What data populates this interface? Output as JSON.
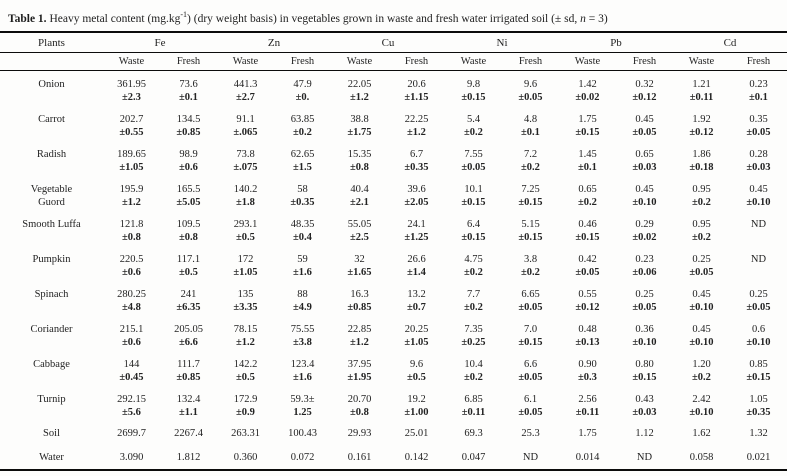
{
  "caption": {
    "label": "Table 1.",
    "pre_sup": " Heavy metal content (mg.kg",
    "sup": "-1",
    "mid": ") (dry weight basis) in vegetables grown in waste and fresh water irrigated soil (± sd, ",
    "italic_n": "n",
    "post": " = 3)"
  },
  "table": {
    "plants_header": "Plants",
    "metal_headers": [
      "Fe",
      "Zn",
      "Cu",
      "Ni",
      "Pb",
      "Cd"
    ],
    "sub_headers": [
      "Waste",
      "Fresh"
    ],
    "rows": [
      {
        "name": "Onion",
        "single": false,
        "cells": [
          [
            "361.95",
            "±2.3"
          ],
          [
            "73.6",
            "±0.1"
          ],
          [
            "441.3",
            "±2.7"
          ],
          [
            "47.9",
            "±0."
          ],
          [
            "22.05",
            "±1.2"
          ],
          [
            "20.6",
            "±1.15"
          ],
          [
            "9.8",
            "±0.15"
          ],
          [
            "9.6",
            "±0.05"
          ],
          [
            "1.42",
            "±0.02"
          ],
          [
            "0.32",
            "±0.12"
          ],
          [
            "1.21",
            "±0.11"
          ],
          [
            "0.23",
            "±0.1"
          ]
        ]
      },
      {
        "name": "Carrot",
        "single": false,
        "cells": [
          [
            "202.7",
            "±0.55"
          ],
          [
            "134.5",
            "±0.85"
          ],
          [
            "91.1",
            "±.065"
          ],
          [
            "63.85",
            "±0.2"
          ],
          [
            "38.8",
            "±1.75"
          ],
          [
            "22.25",
            "±1.2"
          ],
          [
            "5.4",
            "±0.2"
          ],
          [
            "4.8",
            "±0.1"
          ],
          [
            "1.75",
            "±0.15"
          ],
          [
            "0.45",
            "±0.05"
          ],
          [
            "1.92",
            "±0.12"
          ],
          [
            "0.35",
            "±0.05"
          ]
        ]
      },
      {
        "name": "Radish",
        "single": false,
        "cells": [
          [
            "189.65",
            "±1.05"
          ],
          [
            "98.9",
            "±0.6"
          ],
          [
            "73.8",
            "±.075"
          ],
          [
            "62.65",
            "±1.5"
          ],
          [
            "15.35",
            "±0.8"
          ],
          [
            "6.7",
            "±0.35"
          ],
          [
            "7.55",
            "±0.05"
          ],
          [
            "7.2",
            "±0.2"
          ],
          [
            "1.45",
            "±0.1"
          ],
          [
            "0.65",
            "±0.03"
          ],
          [
            "1.86",
            "±0.18"
          ],
          [
            "0.28",
            "±0.03"
          ]
        ]
      },
      {
        "name": "Vegetable",
        "name2": "Guord",
        "single": false,
        "cells": [
          [
            "195.9",
            "±1.2"
          ],
          [
            "165.5",
            "±5.05"
          ],
          [
            "140.2",
            "±1.8"
          ],
          [
            "58",
            "±0.35"
          ],
          [
            "40.4",
            "±2.1"
          ],
          [
            "39.6",
            "±2.05"
          ],
          [
            "10.1",
            "±0.15"
          ],
          [
            "7.25",
            "±0.15"
          ],
          [
            "0.65",
            "±0.2"
          ],
          [
            "0.45",
            "±0.10"
          ],
          [
            "0.95",
            "±0.2"
          ],
          [
            "0.45",
            "±0.10"
          ]
        ]
      },
      {
        "name": "Smooth Luffa",
        "single": false,
        "cells": [
          [
            "121.8",
            "±0.8"
          ],
          [
            "109.5",
            "±0.8"
          ],
          [
            "293.1",
            "±0.5"
          ],
          [
            "48.35",
            "±0.4"
          ],
          [
            "55.05",
            "±2.5"
          ],
          [
            "24.1",
            "±1.25"
          ],
          [
            "6.4",
            "±0.15"
          ],
          [
            "5.15",
            "±0.15"
          ],
          [
            "0.46",
            "±0.15"
          ],
          [
            "0.29",
            "±0.02"
          ],
          [
            "0.95",
            "±0.2"
          ],
          [
            "ND",
            ""
          ]
        ]
      },
      {
        "name": "Pumpkin",
        "single": false,
        "cells": [
          [
            "220.5",
            "±0.6"
          ],
          [
            "117.1",
            "±0.5"
          ],
          [
            "172",
            "±1.05"
          ],
          [
            "59",
            "±1.6"
          ],
          [
            "32",
            "±1.65"
          ],
          [
            "26.6",
            "±1.4"
          ],
          [
            "4.75",
            "±0.2"
          ],
          [
            "3.8",
            "±0.2"
          ],
          [
            "0.42",
            "±0.05"
          ],
          [
            "0.23",
            "±0.06"
          ],
          [
            "0.25",
            "±0.05"
          ],
          [
            "ND",
            ""
          ]
        ]
      },
      {
        "name": "Spinach",
        "single": false,
        "cells": [
          [
            "280.25",
            "±4.8"
          ],
          [
            "241",
            "±6.35"
          ],
          [
            "135",
            "±3.35"
          ],
          [
            "88",
            "±4.9"
          ],
          [
            "16.3",
            "±0.85"
          ],
          [
            "13.2",
            "±0.7"
          ],
          [
            "7.7",
            "±0.2"
          ],
          [
            "6.65",
            "±0.05"
          ],
          [
            "0.55",
            "±0.12"
          ],
          [
            "0.25",
            "±0.05"
          ],
          [
            "0.45",
            "±0.10"
          ],
          [
            "0.25",
            "±0.05"
          ]
        ]
      },
      {
        "name": "Coriander",
        "single": false,
        "cells": [
          [
            "215.1",
            "±0.6"
          ],
          [
            "205.05",
            "±6.6"
          ],
          [
            "78.15",
            "±1.2"
          ],
          [
            "75.55",
            "±3.8"
          ],
          [
            "22.85",
            "±1.2"
          ],
          [
            "20.25",
            "±1.05"
          ],
          [
            "7.35",
            "±0.25"
          ],
          [
            "7.0",
            "±0.15"
          ],
          [
            "0.48",
            "±0.13"
          ],
          [
            "0.36",
            "±0.10"
          ],
          [
            "0.45",
            "±0.10"
          ],
          [
            "0.6",
            "±0.10"
          ]
        ]
      },
      {
        "name": "Cabbage",
        "single": false,
        "cells": [
          [
            "144",
            "±0.45"
          ],
          [
            "111.7",
            "±0.85"
          ],
          [
            "142.2",
            "±0.5"
          ],
          [
            "123.4",
            "±1.6"
          ],
          [
            "37.95",
            "±1.95"
          ],
          [
            "9.6",
            "±0.5"
          ],
          [
            "10.4",
            "±0.2"
          ],
          [
            "6.6",
            "±0.05"
          ],
          [
            "0.90",
            "±0.3"
          ],
          [
            "0.80",
            "±0.15"
          ],
          [
            "1.20",
            "±0.2"
          ],
          [
            "0.85",
            "±0.15"
          ]
        ]
      },
      {
        "name": "Turnip",
        "single": false,
        "cells": [
          [
            "292.15",
            "±5.6"
          ],
          [
            "132.4",
            "±1.1"
          ],
          [
            "172.9",
            "±0.9"
          ],
          [
            "59.3±",
            "1.25"
          ],
          [
            "20.70",
            "±0.8"
          ],
          [
            "19.2",
            "±1.00"
          ],
          [
            "6.85",
            "±0.11"
          ],
          [
            "6.1",
            "±0.05"
          ],
          [
            "2.56",
            "±0.11"
          ],
          [
            "0.43",
            "±0.03"
          ],
          [
            "2.42",
            "±0.10"
          ],
          [
            "1.05",
            "±0.35"
          ]
        ]
      },
      {
        "name": "Soil",
        "single": true,
        "cells": [
          [
            "2699.7",
            ""
          ],
          [
            "2267.4",
            ""
          ],
          [
            "263.31",
            ""
          ],
          [
            "100.43",
            ""
          ],
          [
            "29.93",
            ""
          ],
          [
            "25.01",
            ""
          ],
          [
            "69.3",
            ""
          ],
          [
            "25.3",
            ""
          ],
          [
            "1.75",
            ""
          ],
          [
            "1.12",
            ""
          ],
          [
            "1.62",
            ""
          ],
          [
            "1.32",
            ""
          ]
        ]
      },
      {
        "name": "Water",
        "single": true,
        "cells": [
          [
            "3.090",
            ""
          ],
          [
            "1.812",
            ""
          ],
          [
            "0.360",
            ""
          ],
          [
            "0.072",
            ""
          ],
          [
            "0.161",
            ""
          ],
          [
            "0.142",
            ""
          ],
          [
            "0.047",
            ""
          ],
          [
            "ND",
            ""
          ],
          [
            "0.014",
            ""
          ],
          [
            "ND",
            ""
          ],
          [
            "0.058",
            ""
          ],
          [
            "0.021",
            ""
          ]
        ]
      }
    ]
  },
  "colors": {
    "text": "#232323",
    "rule": "#0c0c0c",
    "background": "#fdfdfc"
  }
}
